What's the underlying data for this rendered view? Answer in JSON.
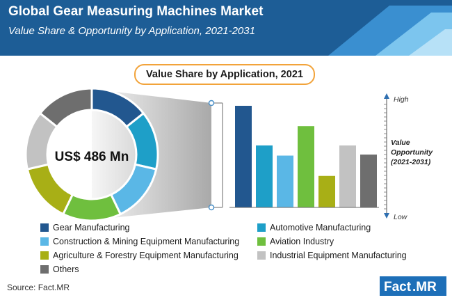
{
  "header": {
    "title": "Global Gear Measuring Machines Market",
    "subtitle": "Value Share & Opportunity by Application, 2021-2031",
    "band_color": "#1d5d96",
    "stripe_colors": [
      "#3a8fd0",
      "#7cc5ee",
      "#b7e1f7"
    ]
  },
  "pill_label": "Value Share by Application, 2021",
  "donut_center_label": "US$ 486 Mn",
  "chart_data": [
    {
      "type": "pie",
      "title": "Value Share by Application, 2021",
      "center_label": "US$ 486 Mn",
      "labels": [
        "Gear Manufacturing",
        "Automotive Manufacturing",
        "Construction & Mining Equipment Manufacturing",
        "Aviation Industry",
        "Agriculture & Forestry Equipment Manufacturing",
        "Industrial Equipment Manufacturing",
        "Others"
      ],
      "values": [
        14.3,
        14.3,
        14.3,
        14.3,
        14.3,
        14.3,
        14.3
      ],
      "colors": [
        "#22578f",
        "#1e9fc8",
        "#5ab7e6",
        "#6fbf3e",
        "#a8af16",
        "#c2c2c2",
        "#6e6e6e"
      ]
    },
    {
      "type": "bar",
      "categories": [
        "Gear Manufacturing",
        "Automotive Manufacturing",
        "Construction & Mining Equipment Manufacturing",
        "Aviation Industry",
        "Agriculture & Forestry Equipment Manufacturing",
        "Industrial Equipment Manufacturing",
        "Others"
      ],
      "values": [
        100,
        61,
        51,
        80,
        31,
        61,
        52
      ],
      "ylim": [
        0,
        100
      ],
      "colors": [
        "#22578f",
        "#1e9fc8",
        "#5ab7e6",
        "#6fbf3e",
        "#a8af16",
        "#c2c2c2",
        "#6e6e6e"
      ],
      "axis": {
        "high_label": "High",
        "low_label": "Low",
        "title_lines": [
          "Value",
          "Opportunity",
          "(2021-2031)"
        ]
      }
    }
  ],
  "legend": [
    {
      "label": "Gear Manufacturing",
      "color": "#22578f"
    },
    {
      "label": "Automotive Manufacturing",
      "color": "#1e9fc8"
    },
    {
      "label": "Construction & Mining Equipment Manufacturing",
      "color": "#5ab7e6"
    },
    {
      "label": "Aviation Industry",
      "color": "#6fbf3e"
    },
    {
      "label": "Agriculture & Forestry Equipment Manufacturing",
      "color": "#a8af16"
    },
    {
      "label": "Industrial Equipment Manufacturing",
      "color": "#c2c2c2"
    },
    {
      "label": "Others",
      "color": "#6e6e6e"
    }
  ],
  "source": "Source: Fact.MR",
  "logo": {
    "part1": "Fact",
    "part2": ".MR",
    "color": "#1d6fb8"
  }
}
